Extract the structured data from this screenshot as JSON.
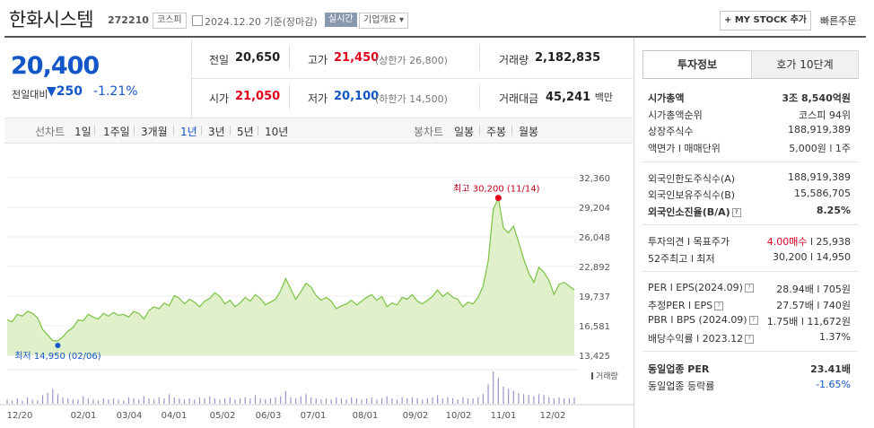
{
  "header": {
    "title": "한화시스템",
    "code": "272210",
    "market_badge": "코스피",
    "date": "2024.12.20  기준(장마감)",
    "realtime_badge": "실시간",
    "company_badge": "기업개요",
    "mystock_button": "+ MY STOCK 추가",
    "fast_order": "빠른주문"
  },
  "price": {
    "current": "20,400",
    "change_label": "전일대비",
    "change": "250",
    "change_pct": "-1.21%",
    "prev_close_label": "전일",
    "prev_close": "20,650",
    "high_label": "고가",
    "high": "21,450",
    "upper_limit": "(상한가 26,800)",
    "volume_label": "거래량",
    "volume": "2,182,835",
    "open_label": "시가",
    "open": "21,050",
    "low_label": "저가",
    "low": "20,100",
    "lower_limit": "(하한가 14,500)",
    "amount_label": "거래대금",
    "amount": "45,241",
    "amount_unit": "백만"
  },
  "period_tabs": {
    "line_label": "선차트",
    "line_items": [
      "1일",
      "1주일",
      "3개월",
      "1년",
      "3년",
      "5년",
      "10년"
    ],
    "selected": "1년",
    "candle_label": "봉차트",
    "candle_items": [
      "일봉",
      "주봉",
      "월봉"
    ]
  },
  "chart_data": {
    "type": "area",
    "y_ticks": [
      "32,360",
      "29,204",
      "26,048",
      "22,892",
      "19,737",
      "16,581",
      "13,425"
    ],
    "ylim": [
      13425,
      32360
    ],
    "x_ticks": [
      "12/20",
      "02/01",
      "03/04",
      "04/01",
      "05/02",
      "06/03",
      "07/01",
      "08/01",
      "09/02",
      "10/02",
      "11/01",
      "12/02"
    ],
    "high_label": "최고 30,200 (11/14)",
    "low_label": "최저 14,950 (02/06)",
    "volume_label": "거래량",
    "line_color": "#7cc243",
    "fill_color": "#dff0cb",
    "values": [
      17200,
      17000,
      17800,
      17600,
      18100,
      17900,
      17400,
      16200,
      15600,
      15000,
      14950,
      15400,
      16000,
      16400,
      17200,
      17100,
      17800,
      17500,
      17300,
      17900,
      17600,
      18000,
      17700,
      17800,
      17500,
      18100,
      17900,
      17300,
      18200,
      18600,
      18400,
      19000,
      18700,
      19800,
      19500,
      18900,
      19400,
      19100,
      18600,
      19200,
      19500,
      20100,
      19700,
      18900,
      19300,
      18600,
      19000,
      19600,
      19200,
      19900,
      19500,
      18800,
      19100,
      19400,
      20300,
      21600,
      20500,
      19400,
      20200,
      21100,
      20700,
      19800,
      19300,
      19600,
      19200,
      18400,
      18700,
      18900,
      19300,
      18800,
      19200,
      19600,
      19900,
      19300,
      19700,
      18600,
      19000,
      18800,
      19600,
      19400,
      19900,
      19200,
      18900,
      19300,
      19700,
      20400,
      19700,
      20100,
      19600,
      19400,
      18600,
      19100,
      18900,
      19600,
      20800,
      23500,
      29000,
      30200,
      27000,
      26500,
      27200,
      25500,
      23700,
      22200,
      21200,
      22800,
      22300,
      21400,
      19900,
      21000,
      21200,
      20800,
      20400
    ],
    "volumes": [
      4,
      3,
      5,
      3,
      6,
      4,
      3,
      8,
      10,
      14,
      9,
      6,
      5,
      4,
      4,
      7,
      5,
      4,
      3,
      5,
      4,
      5,
      4,
      3,
      6,
      5,
      4,
      7,
      5,
      4,
      6,
      5,
      9,
      6,
      5,
      4,
      5,
      4,
      6,
      5,
      7,
      5,
      4,
      5,
      6,
      4,
      5,
      6,
      5,
      8,
      5,
      4,
      5,
      6,
      7,
      12,
      6,
      5,
      7,
      9,
      6,
      5,
      4,
      5,
      4,
      6,
      5,
      4,
      6,
      5,
      4,
      5,
      6,
      4,
      5,
      7,
      5,
      4,
      6,
      5,
      6,
      5,
      4,
      5,
      6,
      8,
      5,
      6,
      5,
      4,
      6,
      5,
      5,
      6,
      9,
      18,
      30,
      24,
      16,
      14,
      12,
      10,
      9,
      8,
      7,
      9,
      8,
      6,
      5,
      6,
      5,
      5,
      6
    ]
  },
  "right_panel": {
    "tabs": [
      "투자정보",
      "호가 10단계"
    ],
    "rows": [
      {
        "label": "시가총액",
        "value": "3조 8,540억원"
      },
      {
        "label": "시가총액순위",
        "value": "코스피 94위"
      },
      {
        "label": "상장주식수",
        "value": "188,919,389"
      },
      {
        "label": "액면가 l 매매단위",
        "value": "5,000원 l 1주"
      },
      {
        "label": "외국인한도주식수(A)",
        "value": "188,919,389"
      },
      {
        "label": "외국인보유주식수(B)",
        "value": "15,586,705"
      },
      {
        "label": "외국인소진율(B/A)",
        "value": "8.25%"
      },
      {
        "label": "투자의견 l 목표주가",
        "value_red": "4.00매수",
        "value": "l 25,938"
      },
      {
        "label": "52주최고 l 최저",
        "value": "30,200 l 14,950"
      },
      {
        "label": "PER l EPS(2024.09)",
        "value": "28.94배 l 705원"
      },
      {
        "label": "추정PER l EPS",
        "value": "27.57배 l 740원"
      },
      {
        "label": "PBR l BPS (2024.09)",
        "value": "1.75배 l 11,672원"
      },
      {
        "label": "배당수익률 l 2023.12",
        "value": "1.37%"
      },
      {
        "label": "동일업종 PER",
        "value": "23.41배"
      },
      {
        "label": "동일업종 등락률",
        "value": "-1.65%"
      }
    ]
  }
}
